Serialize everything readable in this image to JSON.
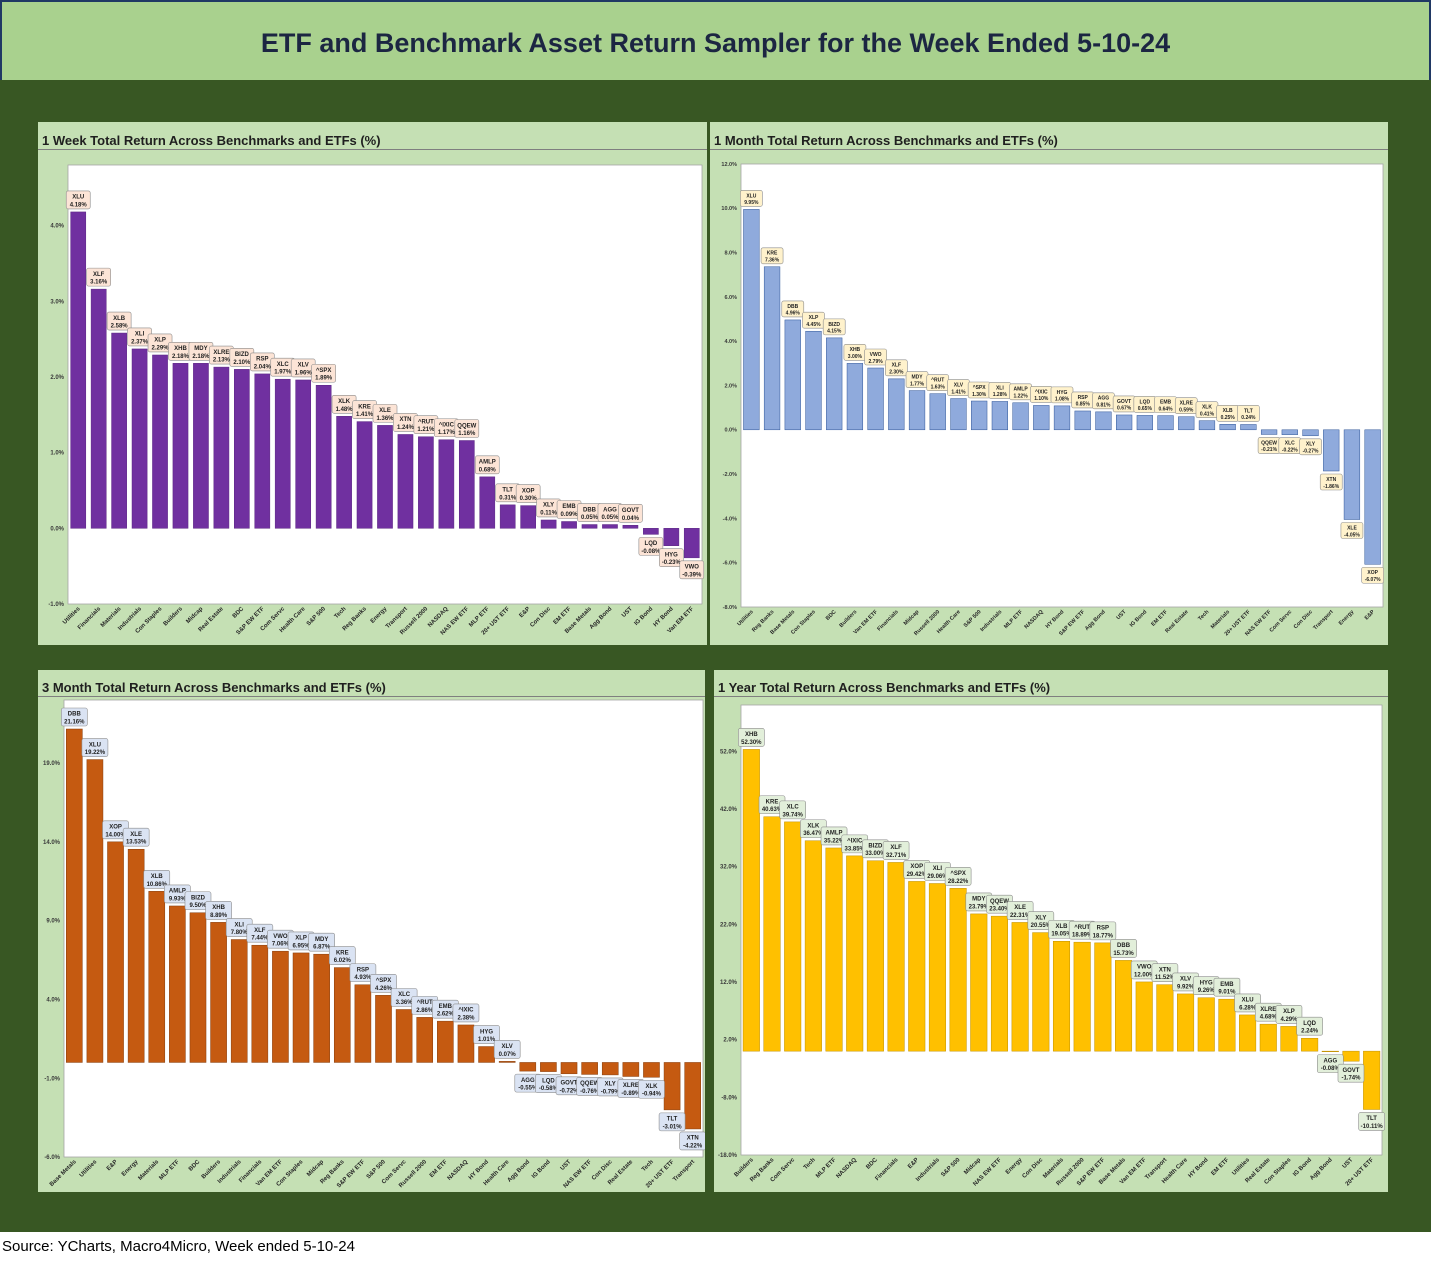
{
  "header": {
    "title": "ETF and Benchmark Asset Return Sampler for the Week Ended 5-10-24"
  },
  "footer": {
    "source": "Source: YCharts, Macro4Micro, Week ended 5-10-24"
  },
  "theme": {
    "header_bg": "#a9d18e",
    "board_bg": "#385723",
    "panel_bg": "#c5e0b4"
  },
  "chart_data": [
    {
      "type": "bar",
      "title": "1 Week Total Return Across Benchmarks and ETFs (%)",
      "xlabel": "",
      "ylabel": "",
      "categories": [
        "Utilities",
        "Financials",
        "Materials",
        "Industrials",
        "Con Staples",
        "Builders",
        "Midcap",
        "Real Estate",
        "BDC",
        "S&P EW ETF",
        "Com Servc",
        "Health Care",
        "S&P 500",
        "Tech",
        "Reg Banks",
        "Energy",
        "Transport",
        "Russell 2000",
        "NASDAQ",
        "NAS EW ETF",
        "MLP ETF",
        "20+ UST ETF",
        "E&P",
        "Con Disc",
        "EM ETF",
        "Base Metals",
        "Agg Bond",
        "UST",
        "IG Bond",
        "HY Bond",
        "Van EM ETF"
      ],
      "tickers": [
        "XLU",
        "XLF",
        "XLB",
        "XLI",
        "XLP",
        "XHB",
        "MDY",
        "XLRE",
        "BIZD",
        "RSP",
        "XLC",
        "XLV",
        "^SPX",
        "XLK",
        "KRE",
        "XLE",
        "XTN",
        "^RUT",
        "^IXIC",
        "QQEW",
        "AMLP",
        "TLT",
        "XOP",
        "XLY",
        "EMB",
        "DBB",
        "AGG",
        "GOVT",
        "LQD",
        "HYG",
        "VWO"
      ],
      "values": [
        4.18,
        3.16,
        2.58,
        2.37,
        2.29,
        2.18,
        2.18,
        2.13,
        2.1,
        2.04,
        1.97,
        1.96,
        1.89,
        1.48,
        1.41,
        1.36,
        1.24,
        1.21,
        1.17,
        1.16,
        0.68,
        0.31,
        0.3,
        0.11,
        0.09,
        0.05,
        0.05,
        0.04,
        -0.08,
        -0.23,
        -0.39
      ],
      "ylim": [
        -1,
        4.8
      ],
      "yticks": [
        4,
        3,
        2,
        1,
        0,
        -1
      ],
      "grid": false,
      "bar_color": "#7030a0",
      "bar_stroke": "#5a2682",
      "label_fill": "#fce4d6"
    },
    {
      "type": "bar",
      "title": "1 Month Total Return Across Benchmarks and ETFs (%)",
      "xlabel": "",
      "ylabel": "",
      "categories": [
        "Utilities",
        "Reg Banks",
        "Base Metals",
        "Con Staples",
        "BDC",
        "Builders",
        "Van EM ETF",
        "Financials",
        "Midcap",
        "Russell 2000",
        "Health Care",
        "S&P 500",
        "Industrials",
        "MLP ETF",
        "NASDAQ",
        "HY Bond",
        "S&P EW ETF",
        "Agg Bond",
        "UST",
        "IG Bond",
        "EM ETF",
        "Real Estate",
        "Tech",
        "Materials",
        "20+ UST ETF",
        "NAS EW ETF",
        "Com Servc",
        "Con Disc",
        "Transport",
        "Energy",
        "E&P"
      ],
      "tickers": [
        "XLU",
        "KRE",
        "DBB",
        "XLP",
        "BIZD",
        "XHB",
        "VWO",
        "XLF",
        "MDY",
        "^RUT",
        "XLV",
        "^SPX",
        "XLI",
        "AMLP",
        "^IXIC",
        "HYG",
        "RSP",
        "AGG",
        "GOVT",
        "LQD",
        "EMB",
        "XLRE",
        "XLK",
        "XLB",
        "TLT",
        "QQEW",
        "XLC",
        "XLY",
        "XTN",
        "XLE",
        "XOP"
      ],
      "values": [
        9.95,
        7.36,
        4.96,
        4.45,
        4.15,
        3.0,
        2.79,
        2.3,
        1.77,
        1.63,
        1.41,
        1.3,
        1.28,
        1.22,
        1.1,
        1.08,
        0.85,
        0.81,
        0.67,
        0.65,
        0.64,
        0.59,
        0.41,
        0.25,
        0.24,
        -0.21,
        -0.22,
        -0.27,
        -1.86,
        -4.05,
        -6.07
      ],
      "ylim": [
        -8,
        12
      ],
      "yticks": [
        12,
        10,
        8,
        6,
        4,
        2,
        0,
        -2,
        -4,
        -6,
        -8
      ],
      "grid": false,
      "bar_color": "#8faadc",
      "bar_stroke": "#2f5597",
      "label_fill": "#fff2cc"
    },
    {
      "type": "bar",
      "title": "3 Month Total Return Across Benchmarks and ETFs (%)",
      "xlabel": "",
      "ylabel": "",
      "categories": [
        "Base Metals",
        "Utilities",
        "E&P",
        "Energy",
        "Materials",
        "MLP ETF",
        "BDC",
        "Builders",
        "Industrials",
        "Financials",
        "Van EM ETF",
        "Con Staples",
        "Midcap",
        "Reg Banks",
        "S&P EW ETF",
        "S&P 500",
        "Com Servc",
        "Russell 2000",
        "EM ETF",
        "NASDAQ",
        "HY Bond",
        "Health Care",
        "Agg Bond",
        "IG Bond",
        "UST",
        "NAS EW ETF",
        "Con Disc",
        "Real Estate",
        "Tech",
        "20+ UST ETF",
        "Transport"
      ],
      "tickers": [
        "DBB",
        "XLU",
        "XOP",
        "XLE",
        "XLB",
        "AMLP",
        "BIZD",
        "XHB",
        "XLI",
        "XLF",
        "VWO",
        "XLP",
        "MDY",
        "KRE",
        "RSP",
        "^SPX",
        "XLC",
        "^RUT",
        "EMB",
        "^IXIC",
        "HYG",
        "XLV",
        "AGG",
        "LQD",
        "GOVT",
        "QQEW",
        "XLY",
        "XLRE",
        "XLK",
        "TLT",
        "XTN"
      ],
      "values": [
        21.16,
        19.22,
        14.0,
        13.53,
        10.86,
        9.93,
        9.5,
        8.89,
        7.8,
        7.44,
        7.06,
        6.95,
        6.87,
        6.02,
        4.93,
        4.26,
        3.36,
        2.86,
        2.62,
        2.38,
        1.01,
        0.07,
        -0.55,
        -0.58,
        -0.72,
        -0.76,
        -0.79,
        -0.89,
        -0.94,
        -3.01,
        -4.22
      ],
      "ylim": [
        -6,
        23
      ],
      "yticks": [
        19,
        14,
        9,
        4,
        -1,
        -6
      ],
      "grid": false,
      "bar_color": "#c55a11",
      "bar_stroke": "#843c0c",
      "label_fill": "#dae3f3"
    },
    {
      "type": "bar",
      "title": "1 Year Total Return Across Benchmarks and ETFs (%)",
      "xlabel": "",
      "ylabel": "",
      "categories": [
        "Builders",
        "Reg Banks",
        "Com Servc",
        "Tech",
        "MLP ETF",
        "NASDAQ",
        "BDC",
        "Financials",
        "E&P",
        "Industrials",
        "S&P 500",
        "Midcap",
        "NAS EW ETF",
        "Energy",
        "Con Disc",
        "Materials",
        "Russell 2000",
        "S&P EW ETF",
        "Base Metals",
        "Van EM ETF",
        "Transport",
        "Health Care",
        "HY Bond",
        "EM ETF",
        "Utilities",
        "Real Estate",
        "Con Staples",
        "IG Bond",
        "Agg Bond",
        "UST",
        "20+ UST ETF"
      ],
      "tickers": [
        "XHB",
        "KRE",
        "XLC",
        "XLK",
        "AMLP",
        "^IXIC",
        "BIZD",
        "XLF",
        "XOP",
        "XLI",
        "^SPX",
        "MDY",
        "QQEW",
        "XLE",
        "XLY",
        "XLB",
        "^RUT",
        "RSP",
        "DBB",
        "VWO",
        "XTN",
        "XLV",
        "HYG",
        "EMB",
        "XLU",
        "XLRE",
        "XLP",
        "LQD",
        "AGG",
        "GOVT",
        "TLT"
      ],
      "values": [
        52.3,
        40.63,
        39.74,
        36.47,
        35.22,
        33.85,
        33.0,
        32.71,
        29.42,
        29.06,
        28.22,
        23.79,
        23.4,
        22.31,
        20.55,
        19.05,
        18.89,
        18.77,
        15.73,
        12.0,
        11.52,
        9.92,
        9.26,
        9.01,
        6.28,
        4.68,
        4.29,
        2.24,
        -0.08,
        -1.74,
        -10.11
      ],
      "ylim": [
        -18,
        60
      ],
      "yticks": [
        52,
        42,
        32,
        22,
        12,
        2,
        -8,
        -18
      ],
      "grid": false,
      "bar_color": "#ffc000",
      "bar_stroke": "#bf9000",
      "label_fill": "#e2efda"
    }
  ]
}
